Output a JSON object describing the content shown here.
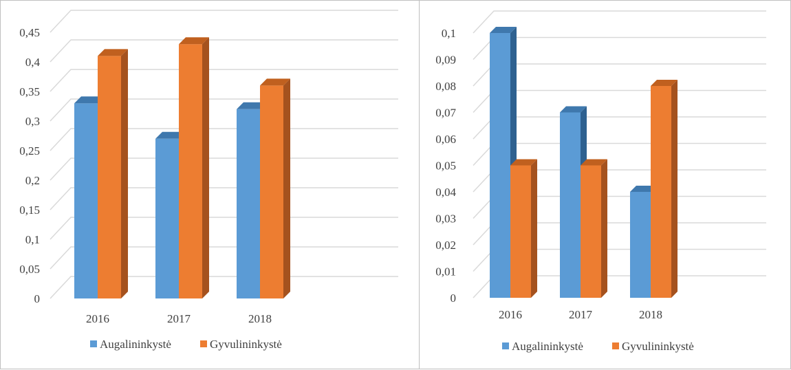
{
  "colors": {
    "series1_front": "#5b9bd5",
    "series1_side": "#2e6190",
    "series1_top": "#3f78ad",
    "series2_front": "#ed7d31",
    "series2_side": "#a5521e",
    "series2_top": "#c0601f",
    "grid": "#d9d9d9",
    "text": "#404040"
  },
  "chart_data": [
    {
      "type": "bar",
      "categories": [
        "2016",
        "2017",
        "2018"
      ],
      "series": [
        {
          "name": "Augalininkystė",
          "values": [
            0.33,
            0.27,
            0.32
          ]
        },
        {
          "name": "Gyvulininkystė",
          "values": [
            0.41,
            0.43,
            0.36
          ]
        }
      ],
      "ylim": [
        0,
        0.45
      ],
      "yticks": [
        "0",
        "0,05",
        "0,1",
        "0,15",
        "0,2",
        "0,25",
        "0,3",
        "0,35",
        "0,4",
        "0,45"
      ],
      "grid": true,
      "legend": "bottom"
    },
    {
      "type": "bar",
      "categories": [
        "2016",
        "2017",
        "2018"
      ],
      "series": [
        {
          "name": "Augalininkystė",
          "values": [
            0.1,
            0.07,
            0.04
          ]
        },
        {
          "name": "Gyvulininkystė",
          "values": [
            0.05,
            0.05,
            0.08
          ]
        }
      ],
      "ylim": [
        0,
        0.1
      ],
      "yticks": [
        "0",
        "0,01",
        "0,02",
        "0,03",
        "0,04",
        "0,05",
        "0,06",
        "0,07",
        "0,08",
        "0,09",
        "0,1"
      ],
      "grid": true,
      "legend": "bottom"
    }
  ]
}
